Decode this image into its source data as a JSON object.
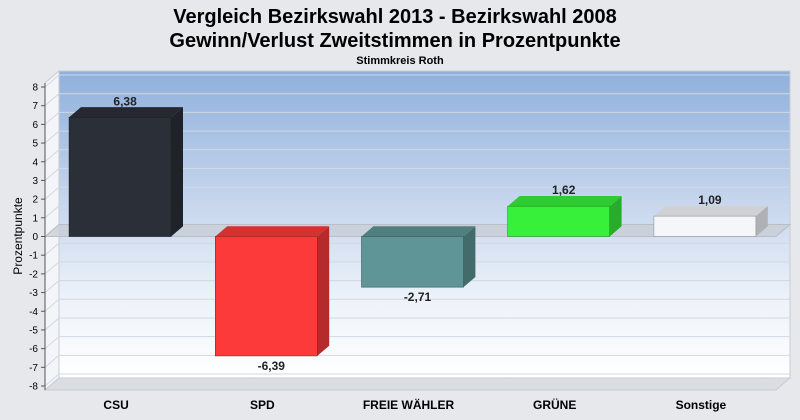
{
  "chart_data": {
    "type": "bar",
    "title_lines": [
      "Vergleich Bezirkswahl 2013 - Bezirkswahl 2008",
      "Gewinn/Verlust Zweitstimmen in Prozentpunkte"
    ],
    "subtitle": "Stimmkreis Roth",
    "ylabel": "Prozentpunkte",
    "xlabel": "",
    "ylim": [
      -8,
      8
    ],
    "yticks": [
      8,
      7,
      6,
      5,
      4,
      3,
      2,
      1,
      0,
      -1,
      -2,
      -3,
      -4,
      -5,
      -6,
      -7,
      -8
    ],
    "ytick_labels": [
      "8",
      "7",
      "6",
      "5",
      "4",
      "3",
      "2",
      "1",
      "0",
      "-1",
      "-2",
      "-3",
      "-4",
      "-5",
      "-6",
      "-7",
      "-8"
    ],
    "categories": [
      "CSU",
      "SPD",
      "FREIE WÄHLER",
      "GRÜNE",
      "Sonstige"
    ],
    "values": [
      6.38,
      -6.39,
      -2.71,
      1.62,
      1.09
    ],
    "data_labels": [
      "6,38",
      "-6,39",
      "-2,71",
      "1,62",
      "1,09"
    ],
    "colors": [
      "#2b2f38",
      "#fc3a3a",
      "#5f9596",
      "#37f03a",
      "#f4f6fa"
    ],
    "grid": true,
    "legend": "none"
  }
}
